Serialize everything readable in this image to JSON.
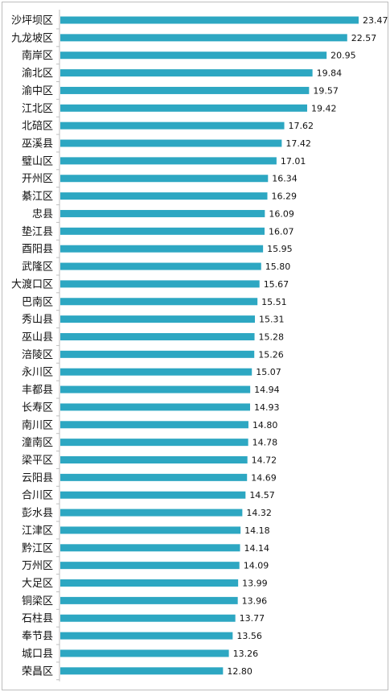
{
  "chart_data": {
    "type": "bar",
    "orientation": "horizontal",
    "categories": [
      "沙坪坝区",
      "九龙坡区",
      "南岸区",
      "渝北区",
      "渝中区",
      "江北区",
      "北碚区",
      "巫溪县",
      "璧山区",
      "开州区",
      "綦江区",
      "忠县",
      "垫江县",
      "酉阳县",
      "武隆区",
      "大渡口区",
      "巴南区",
      "秀山县",
      "巫山县",
      "涪陵区",
      "永川区",
      "丰都县",
      "长寿区",
      "南川区",
      "潼南区",
      "梁平区",
      "云阳县",
      "合川区",
      "彭水县",
      "江津区",
      "黔江区",
      "万州区",
      "大足区",
      "铜梁区",
      "石柱县",
      "奉节县",
      "城口县",
      "荣昌区"
    ],
    "values": [
      23.47,
      22.57,
      20.95,
      19.84,
      19.57,
      19.42,
      17.62,
      17.42,
      17.01,
      16.34,
      16.29,
      16.09,
      16.07,
      15.95,
      15.8,
      15.67,
      15.51,
      15.31,
      15.28,
      15.26,
      15.07,
      14.94,
      14.93,
      14.8,
      14.78,
      14.72,
      14.69,
      14.57,
      14.32,
      14.18,
      14.14,
      14.09,
      13.99,
      13.96,
      13.77,
      13.56,
      13.26,
      12.8
    ],
    "value_labels": [
      "23.47",
      "22.57",
      "20.95",
      "19.84",
      "19.57",
      "19.42",
      "17.62",
      "17.42",
      "17.01",
      "16.34",
      "16.29",
      "16.09",
      "16.07",
      "15.95",
      "15.80",
      "15.67",
      "15.51",
      "15.31",
      "15.28",
      "15.26",
      "15.07",
      "14.94",
      "14.93",
      "14.80",
      "14.78",
      "14.72",
      "14.69",
      "14.57",
      "14.32",
      "14.18",
      "14.14",
      "14.09",
      "13.99",
      "13.96",
      "13.77",
      "13.56",
      "13.26",
      "12.80"
    ],
    "xlim": [
      0,
      23.47
    ],
    "grid": false,
    "legend": "none",
    "bar_color": "#2da7c2",
    "axis_color": "#bfbfbf"
  }
}
